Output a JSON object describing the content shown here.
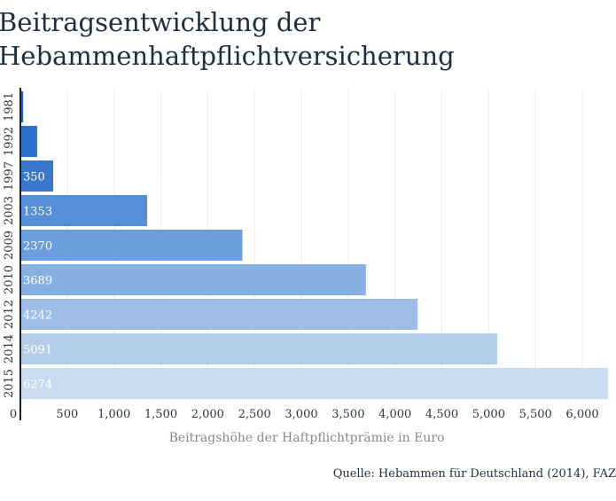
{
  "title_line1": "Beitragsentwicklung der",
  "title_line2": "Hebammenhaftpflichtversicherung",
  "source": "Quelle: Hebammen für Deutschland (2014), FAZ",
  "chart_data": {
    "type": "bar",
    "orientation": "horizontal",
    "categories": [
      "1981",
      "1992",
      "1997",
      "2003",
      "2009",
      "2010",
      "2012",
      "2014",
      "2015"
    ],
    "values": [
      30,
      179,
      350,
      1353,
      2370,
      3689,
      4242,
      5091,
      6274
    ],
    "data_labels": [
      "",
      "",
      "350",
      "1353",
      "2370",
      "3689",
      "4242",
      "5091",
      "6274"
    ],
    "bar_colors": [
      "#1a5fbf",
      "#2e6fcc",
      "#3a77cf",
      "#558fd7",
      "#6b9edd",
      "#87afe2",
      "#9ebde6",
      "#b3cdeb",
      "#cadcf1"
    ],
    "title": "Beitragsentwicklung der Hebammenhaftpflichtversicherung",
    "xlabel": "Beitragshöhe der Haftpflichtprämie in Euro",
    "ylabel": "",
    "xlim": [
      0,
      6274
    ],
    "x_ticks": [
      0,
      500,
      1000,
      1500,
      2000,
      2500,
      3000,
      3500,
      4000,
      4500,
      5000,
      5500,
      6000
    ],
    "x_tick_labels": [
      "0",
      "500",
      "1,000",
      "1,500",
      "2,000",
      "2,500",
      "3,000",
      "3,500",
      "4,000",
      "4,500",
      "5,000",
      "5,500",
      "6,000"
    ],
    "grid": true,
    "legend": "none"
  }
}
